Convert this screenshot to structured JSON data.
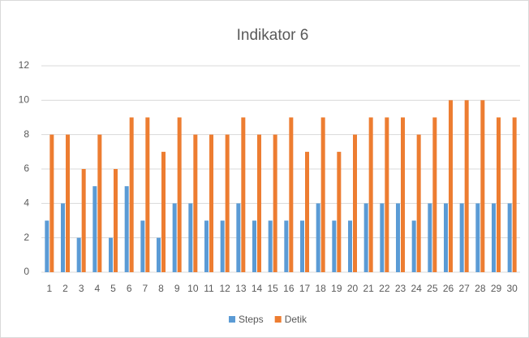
{
  "chart_data": {
    "type": "bar",
    "title": "Indikator 6",
    "categories": [
      "1",
      "2",
      "3",
      "4",
      "5",
      "6",
      "7",
      "8",
      "9",
      "10",
      "11",
      "12",
      "13",
      "14",
      "15",
      "16",
      "17",
      "18",
      "19",
      "20",
      "21",
      "22",
      "23",
      "24",
      "25",
      "26",
      "27",
      "28",
      "29",
      "30"
    ],
    "series": [
      {
        "name": "Steps",
        "color": "#5b9bd5",
        "values": [
          3,
          4,
          2,
          5,
          2,
          5,
          3,
          2,
          4,
          4,
          3,
          3,
          4,
          3,
          3,
          3,
          3,
          4,
          3,
          3,
          4,
          4,
          4,
          3,
          4,
          4,
          4,
          4,
          4,
          4
        ]
      },
      {
        "name": "Detik",
        "color": "#ed7d31",
        "values": [
          8,
          8,
          6,
          8,
          6,
          9,
          9,
          7,
          9,
          8,
          8,
          8,
          9,
          8,
          8,
          9,
          7,
          9,
          7,
          8,
          9,
          9,
          9,
          8,
          9,
          10,
          10,
          10,
          9,
          9
        ]
      }
    ],
    "ylim": [
      0,
      12
    ],
    "yticks": [
      0,
      2,
      4,
      6,
      8,
      10,
      12
    ],
    "grid": true,
    "legend": "bottom"
  }
}
